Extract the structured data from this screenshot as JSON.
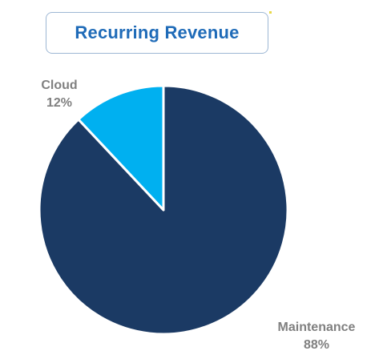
{
  "colors": {
    "maintenance": "#1b3a64",
    "cloud": "#00b0f0",
    "title": "#1f6bb8",
    "label": "#808080"
  },
  "chart_data": {
    "type": "pie",
    "title": "Recurring Revenue",
    "legend": "none",
    "slices": [
      {
        "name": "Maintenance",
        "value": 88,
        "label": "88%"
      },
      {
        "name": "Cloud",
        "value": 12,
        "label": "12%"
      }
    ]
  }
}
